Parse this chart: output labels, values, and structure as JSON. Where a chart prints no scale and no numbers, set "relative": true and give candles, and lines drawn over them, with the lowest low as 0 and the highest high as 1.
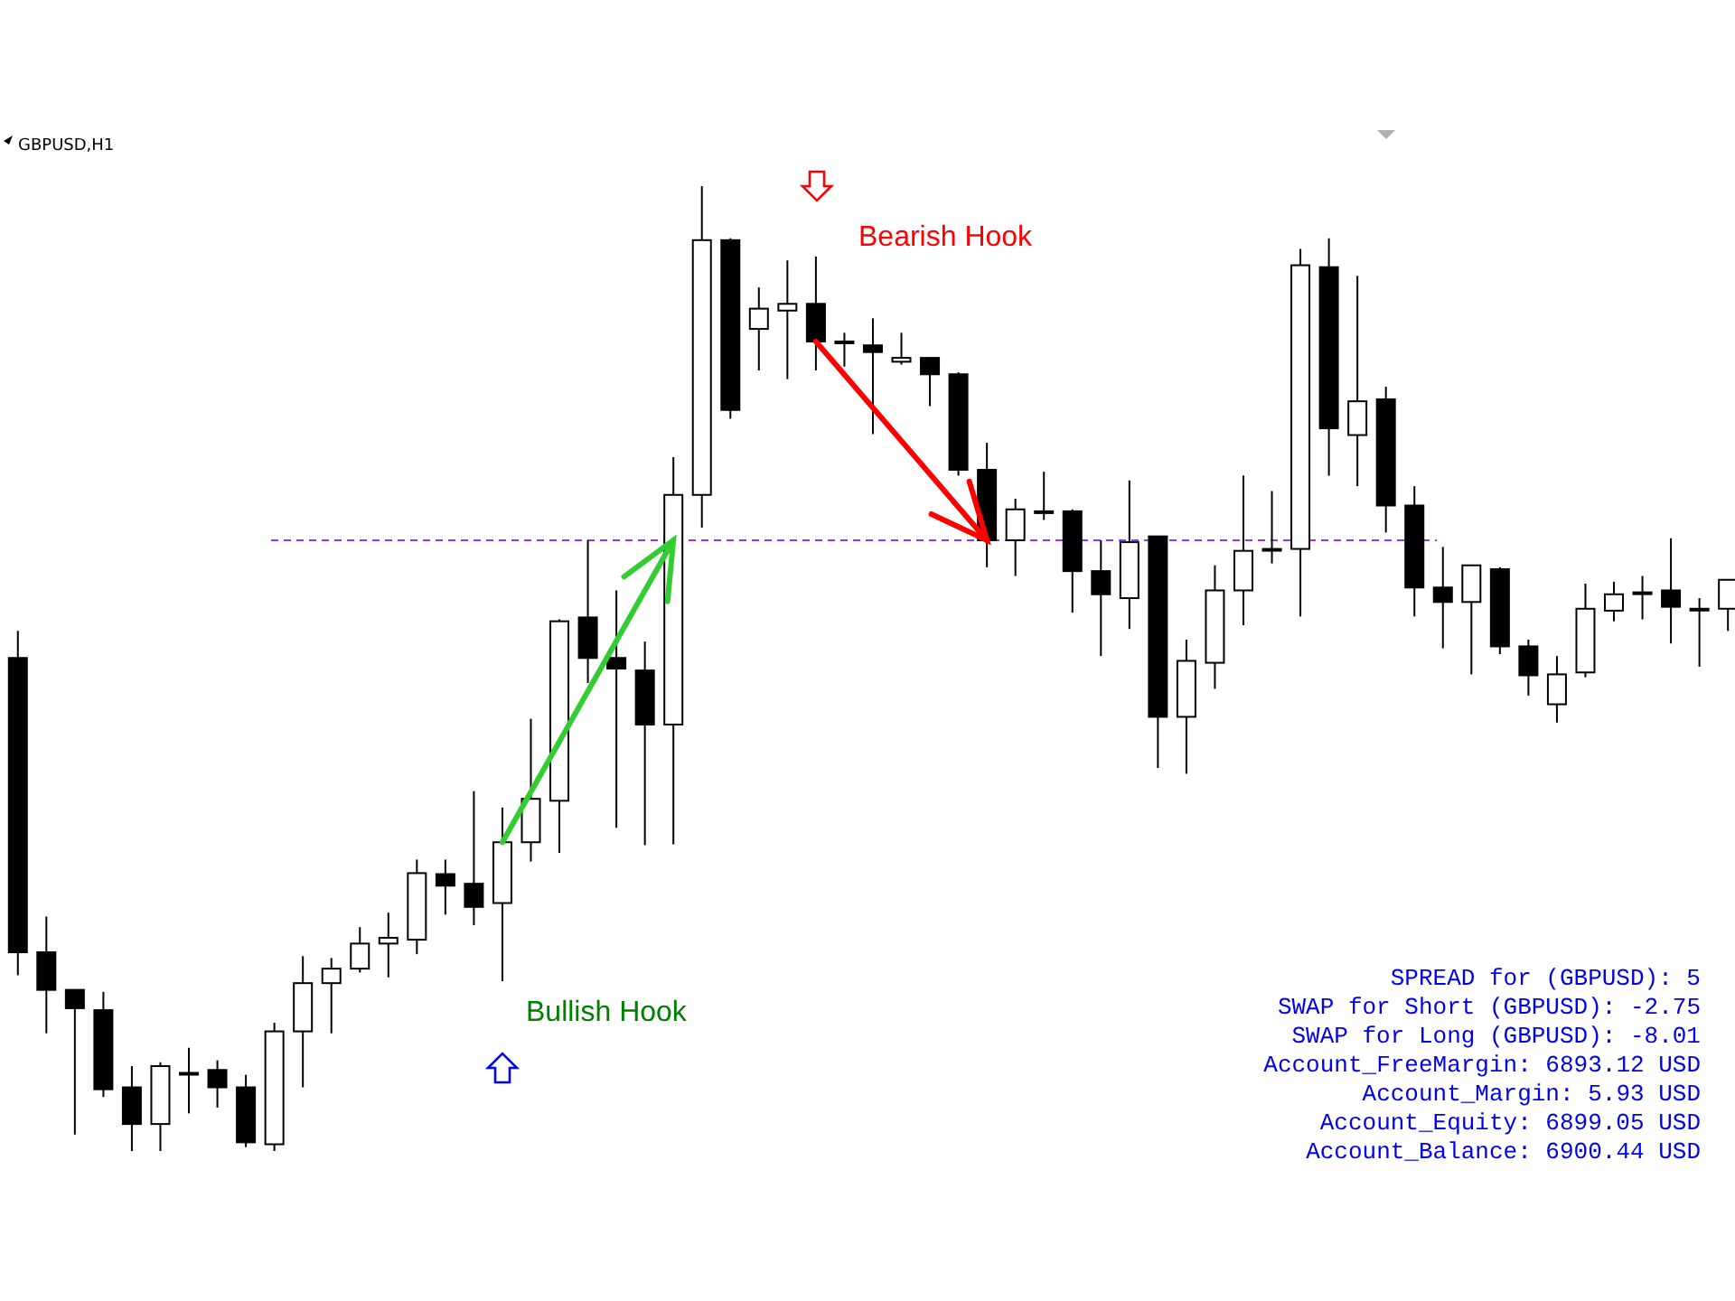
{
  "chart_data": {
    "type": "candlestick",
    "title": "GBPUSD,H1",
    "relative": true,
    "categories": [
      null,
      null,
      null,
      null,
      null,
      null,
      null,
      null,
      null,
      null,
      null,
      null,
      null,
      null,
      null,
      null,
      null,
      null,
      null,
      null,
      null,
      null,
      null,
      null,
      null,
      null,
      null,
      null,
      null,
      null,
      null,
      null,
      null,
      null,
      null,
      null,
      null,
      null,
      null,
      null,
      null,
      null,
      null,
      null,
      null,
      null,
      null,
      null,
      null,
      null,
      null,
      null,
      null,
      null,
      null,
      null,
      null,
      null,
      null,
      null,
      null
    ],
    "ohlc": [
      [
        0.511,
        0.539,
        0.182,
        0.206
      ],
      [
        0.206,
        0.243,
        0.122,
        0.167
      ],
      [
        0.167,
        0.167,
        0.017,
        0.148
      ],
      [
        0.146,
        0.165,
        0.056,
        0.064
      ],
      [
        0.066,
        0.088,
        0,
        0.028
      ],
      [
        0.028,
        0.092,
        0,
        0.088
      ],
      [
        0.081,
        0.107,
        0.039,
        0.081
      ],
      [
        0.084,
        0.094,
        0.045,
        0.066
      ],
      [
        0.066,
        0.079,
        0.004,
        0.009
      ],
      [
        0.007,
        0.133,
        0,
        0.124
      ],
      [
        0.124,
        0.202,
        0.066,
        0.174
      ],
      [
        0.174,
        0.2,
        0.122,
        0.189
      ],
      [
        0.189,
        0.232,
        0.185,
        0.215
      ],
      [
        0.215,
        0.247,
        0.18,
        0.221
      ],
      [
        0.219,
        0.302,
        0.204,
        0.288
      ],
      [
        0.287,
        0.302,
        0.245,
        0.275
      ],
      [
        0.277,
        0.373,
        0.234,
        0.253
      ],
      [
        0.257,
        0.356,
        0.176,
        0.32
      ],
      [
        0.32,
        0.448,
        0.3,
        0.365
      ],
      [
        0.363,
        0.551,
        0.309,
        0.549
      ],
      [
        0.553,
        0.633,
        0.485,
        0.511
      ],
      [
        0.511,
        0.581,
        0.335,
        0.5
      ],
      [
        0.498,
        0.528,
        0.317,
        0.442
      ],
      [
        0.442,
        0.719,
        0.318,
        0.68
      ],
      [
        0.68,
        1,
        0.646,
        0.944
      ],
      [
        0.944,
        0.946,
        0.759,
        0.768
      ],
      [
        0.852,
        0.895,
        0.809,
        0.873
      ],
      [
        0.871,
        0.923,
        0.8,
        0.878
      ],
      [
        0.878,
        0.927,
        0.809,
        0.839
      ],
      [
        0.839,
        0.848,
        0.813,
        0.839
      ],
      [
        0.835,
        0.863,
        0.743,
        0.828
      ],
      [
        0.818,
        0.848,
        0.815,
        0.822
      ],
      [
        0.822,
        0.822,
        0.772,
        0.805
      ],
      [
        0.805,
        0.807,
        0.7,
        0.706
      ],
      [
        0.706,
        0.734,
        0.605,
        0.633
      ],
      [
        0.633,
        0.676,
        0.596,
        0.665
      ],
      [
        0.663,
        0.704,
        0.654,
        0.663
      ],
      [
        0.663,
        0.665,
        0.558,
        0.601
      ],
      [
        0.601,
        0.633,
        0.513,
        0.577
      ],
      [
        0.573,
        0.695,
        0.541,
        0.631
      ],
      [
        0.637,
        0.637,
        0.397,
        0.45
      ],
      [
        0.45,
        0.53,
        0.391,
        0.508
      ],
      [
        0.506,
        0.607,
        0.479,
        0.581
      ],
      [
        0.581,
        0.7,
        0.545,
        0.622
      ],
      [
        0.624,
        0.684,
        0.609,
        0.624
      ],
      [
        0.624,
        0.935,
        0.554,
        0.918
      ],
      [
        0.916,
        0.946,
        0.7,
        0.749
      ],
      [
        0.742,
        0.907,
        0.689,
        0.777
      ],
      [
        0.779,
        0.792,
        0.641,
        0.669
      ],
      [
        0.669,
        0.689,
        0.554,
        0.584
      ],
      [
        0.584,
        0.626,
        0.521,
        0.569
      ],
      [
        0.569,
        0.607,
        0.494,
        0.607
      ],
      [
        0.603,
        0.605,
        0.515,
        0.523
      ],
      [
        0.523,
        0.53,
        0.472,
        0.493
      ],
      [
        0.463,
        0.513,
        0.444,
        0.494
      ],
      [
        0.496,
        0.588,
        0.491,
        0.562
      ],
      [
        0.56,
        0.59,
        0.549,
        0.577
      ],
      [
        0.579,
        0.596,
        0.551,
        0.579
      ],
      [
        0.581,
        0.635,
        0.526,
        0.564
      ],
      [
        0.562,
        0.573,
        0.502,
        0.562
      ],
      [
        0.562,
        0.592,
        0.539,
        0.592
      ]
    ],
    "ref_lines": [
      {
        "axis": "y",
        "value": 0.633,
        "color": "#9933ff",
        "line_style": "dashed"
      }
    ],
    "annotations": [
      "Bearish Hook",
      "Bullish Hook",
      "SPREAD for (GBPUSD): 5",
      "SWAP for Short (GBPUSD): -2.75",
      "SWAP for Long (GBPUSD): -8.01",
      "Account_FreeMargin: 6893.12 USD",
      "Account_Margin: 5.93 USD",
      "Account_Equity: 6899.05 USD",
      "Account_Balance: 6900.44 USD"
    ]
  }
}
